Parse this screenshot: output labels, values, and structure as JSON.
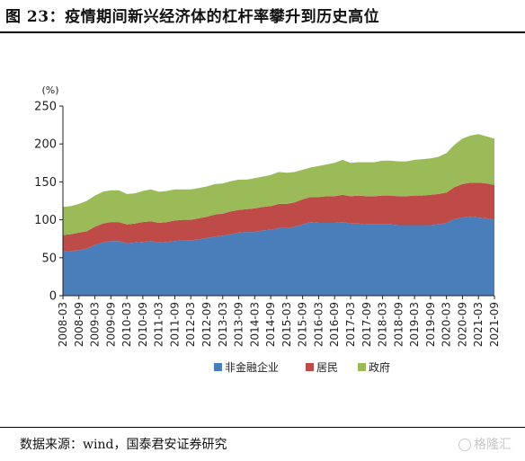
{
  "title": "图 23：疫情期间新兴经济体的杠杆率攀升到历史高位",
  "source": "数据来源：wind，国泰君安证券研究",
  "watermark": "格隆汇",
  "chart_data": {
    "type": "area",
    "stacked": true,
    "y_unit": "(%)",
    "ylim": [
      0,
      250
    ],
    "yticks": [
      0,
      50,
      100,
      150,
      200,
      250
    ],
    "grid": false,
    "legend_position": "bottom",
    "tick_labels": [
      "2008-03",
      "2008-09",
      "2009-03",
      "2009-09",
      "2010-03",
      "2010-09",
      "2011-03",
      "2011-09",
      "2012-03",
      "2012-09",
      "2013-03",
      "2013-09",
      "2014-03",
      "2014-09",
      "2015-03",
      "2015-09",
      "2016-03",
      "2016-09",
      "2017-03",
      "2017-09",
      "2018-03",
      "2018-09",
      "2019-03",
      "2019-09",
      "2020-03",
      "2020-09",
      "2021-03",
      "2021-09"
    ],
    "x": [
      "2008-03",
      "2008-06",
      "2008-09",
      "2008-12",
      "2009-03",
      "2009-06",
      "2009-09",
      "2009-12",
      "2010-03",
      "2010-06",
      "2010-09",
      "2010-12",
      "2011-03",
      "2011-06",
      "2011-09",
      "2011-12",
      "2012-03",
      "2012-06",
      "2012-09",
      "2012-12",
      "2013-03",
      "2013-06",
      "2013-09",
      "2013-12",
      "2014-03",
      "2014-06",
      "2014-09",
      "2014-12",
      "2015-03",
      "2015-06",
      "2015-09",
      "2015-12",
      "2016-03",
      "2016-06",
      "2016-09",
      "2016-12",
      "2017-03",
      "2017-06",
      "2017-09",
      "2017-12",
      "2018-03",
      "2018-06",
      "2018-09",
      "2018-12",
      "2019-03",
      "2019-06",
      "2019-09",
      "2019-12",
      "2020-03",
      "2020-06",
      "2020-09",
      "2020-12",
      "2021-03",
      "2021-06",
      "2021-09"
    ],
    "series": [
      {
        "name": "非金融企业",
        "color": "#4a7ebb",
        "values": [
          58,
          59,
          60,
          62,
          67,
          70,
          72,
          72,
          69,
          70,
          71,
          72,
          70,
          71,
          72,
          73,
          73,
          74,
          76,
          78,
          79,
          81,
          83,
          84,
          84,
          86,
          87,
          89,
          89,
          91,
          94,
          97,
          96,
          96,
          96,
          97,
          95,
          95,
          94,
          94,
          94,
          94,
          93,
          93,
          93,
          93,
          93,
          94,
          96,
          101,
          103,
          104,
          103,
          102,
          100
        ]
      },
      {
        "name": "居民",
        "color": "#be4b48",
        "values": [
          22,
          22,
          23,
          23,
          24,
          25,
          25,
          25,
          25,
          25,
          26,
          26,
          26,
          26,
          27,
          27,
          27,
          28,
          28,
          29,
          29,
          30,
          30,
          30,
          31,
          31,
          31,
          32,
          32,
          32,
          33,
          33,
          34,
          35,
          35,
          36,
          36,
          37,
          37,
          37,
          38,
          38,
          38,
          38,
          39,
          39,
          40,
          40,
          40,
          42,
          44,
          45,
          46,
          46,
          46
        ]
      },
      {
        "name": "政府",
        "color": "#9bbb59",
        "values": [
          37,
          37,
          38,
          40,
          41,
          42,
          42,
          42,
          40,
          40,
          41,
          42,
          41,
          41,
          41,
          40,
          40,
          40,
          40,
          40,
          40,
          40,
          40,
          39,
          40,
          40,
          41,
          42,
          41,
          40,
          39,
          39,
          41,
          42,
          44,
          46,
          44,
          44,
          45,
          45,
          46,
          46,
          46,
          46,
          47,
          48,
          48,
          49,
          52,
          56,
          60,
          62,
          64,
          62,
          61
        ]
      }
    ]
  }
}
